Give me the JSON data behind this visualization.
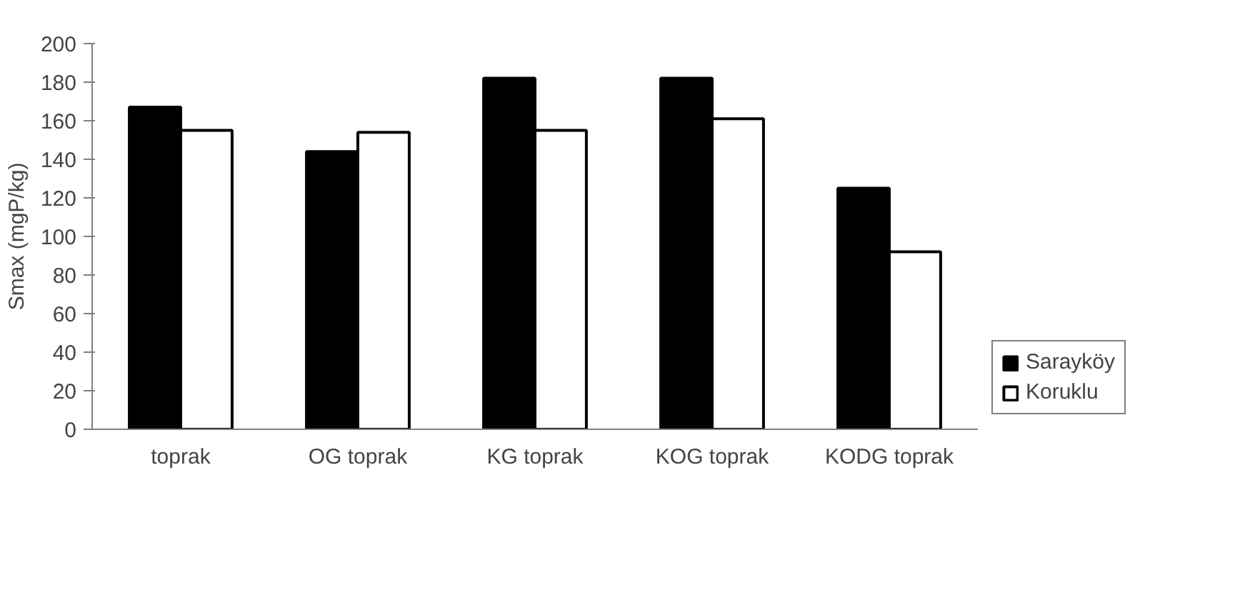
{
  "chart_data": {
    "type": "bar",
    "ylabel": "Smax (mgP/kg)",
    "categories": [
      "toprak",
      "OG toprak",
      "KG toprak",
      "KOG toprak",
      "KODG toprak"
    ],
    "series": [
      {
        "name": "Sarayköy",
        "color": "#000000",
        "values": [
          167,
          144,
          182,
          182,
          125
        ]
      },
      {
        "name": "Koruklu",
        "color": "#ffffff",
        "values": [
          155,
          154,
          155,
          161,
          92
        ]
      }
    ],
    "ylim": [
      0,
      200
    ],
    "yticks": [
      0,
      20,
      40,
      60,
      80,
      100,
      120,
      140,
      160,
      180,
      200
    ],
    "grid": false,
    "legend": "bottom right"
  }
}
